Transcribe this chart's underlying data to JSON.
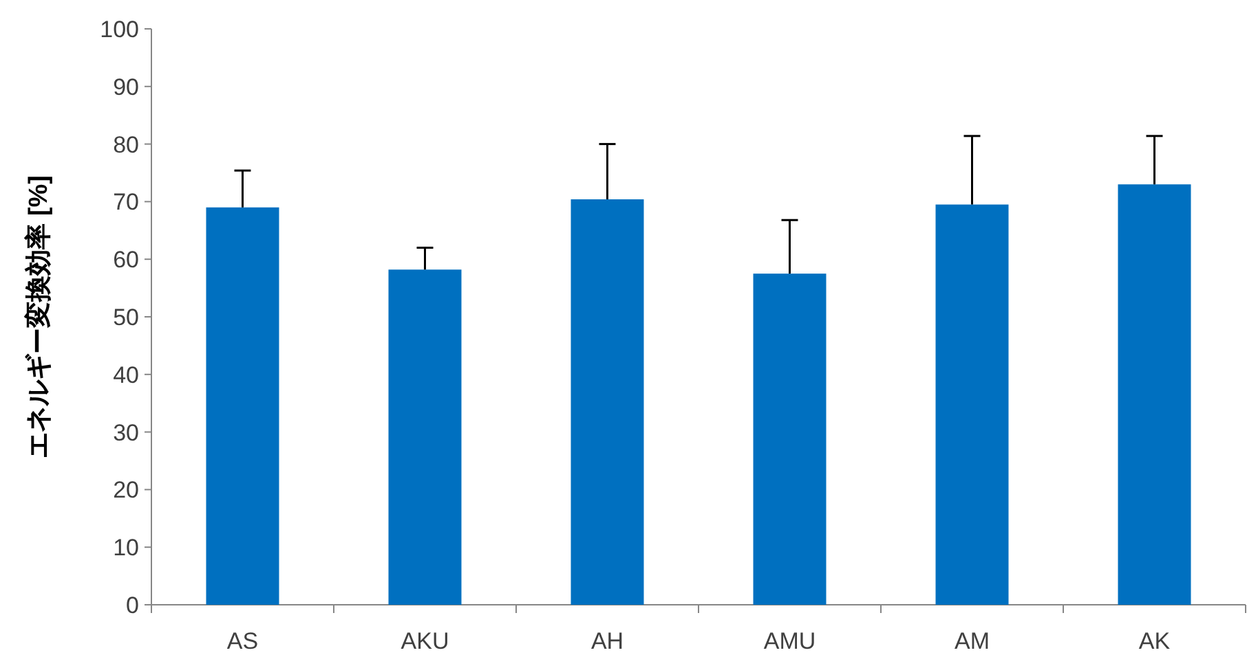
{
  "chart_data": {
    "type": "bar",
    "ylabel": "エネルギー変換効率 [%]",
    "categories": [
      "AS",
      "AKU",
      "AH",
      "AMU",
      "AM",
      "AK"
    ],
    "values": [
      69.0,
      58.2,
      70.4,
      57.5,
      69.5,
      73.0
    ],
    "errors": [
      [
        69.0,
        75.4
      ],
      [
        58.2,
        62.0
      ],
      [
        70.4,
        80.0
      ],
      [
        57.5,
        66.8
      ],
      [
        69.5,
        81.4
      ],
      [
        73.0,
        81.4
      ]
    ],
    "color": "#0070c0",
    "ylim": [
      0,
      100
    ],
    "yticks": [
      0,
      10,
      20,
      30,
      40,
      50,
      60,
      70,
      80,
      90,
      100
    ],
    "grid": false
  }
}
